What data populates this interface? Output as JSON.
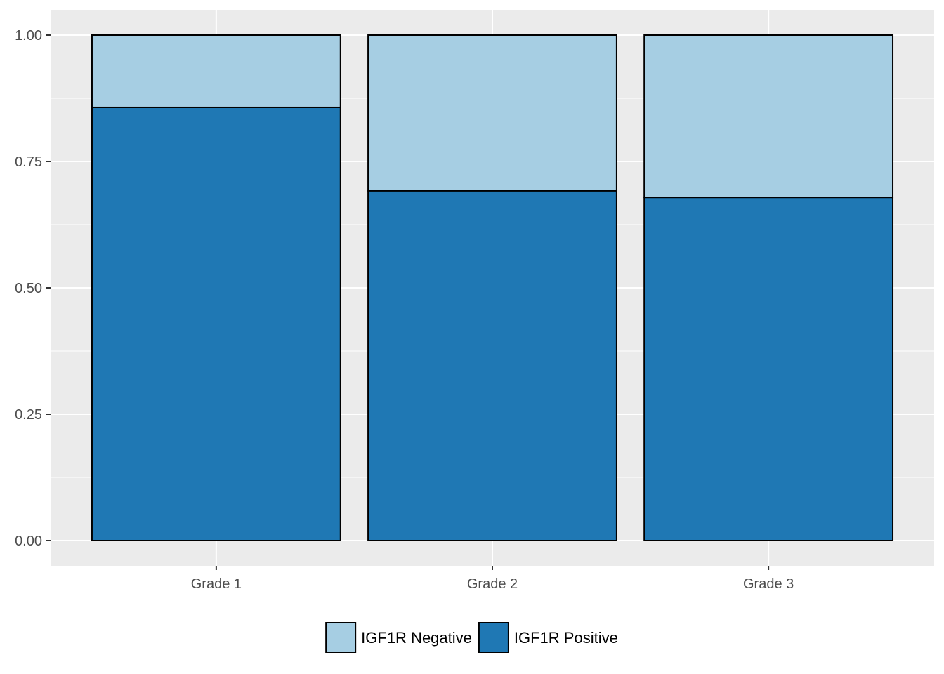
{
  "chart_data": {
    "type": "bar",
    "stacked": true,
    "categories": [
      "Grade 1",
      "Grade 2",
      "Grade 3"
    ],
    "series": [
      {
        "name": "IGF1R Positive",
        "values": [
          0.857,
          0.692,
          0.679
        ],
        "color": "#1f78b4"
      },
      {
        "name": "IGF1R Negative",
        "values": [
          0.143,
          0.308,
          0.321
        ],
        "color": "#a6cee3"
      }
    ],
    "y_ticks": [
      "0.00",
      "0.25",
      "0.50",
      "0.75",
      "1.00"
    ],
    "ylim": [
      -0.05,
      1.05
    ],
    "grid": true,
    "panel_background": "#ebebeb",
    "legend_position": "bottom",
    "legend_order": [
      "IGF1R Negative",
      "IGF1R Positive"
    ],
    "title": "",
    "xlabel": "",
    "ylabel": ""
  }
}
